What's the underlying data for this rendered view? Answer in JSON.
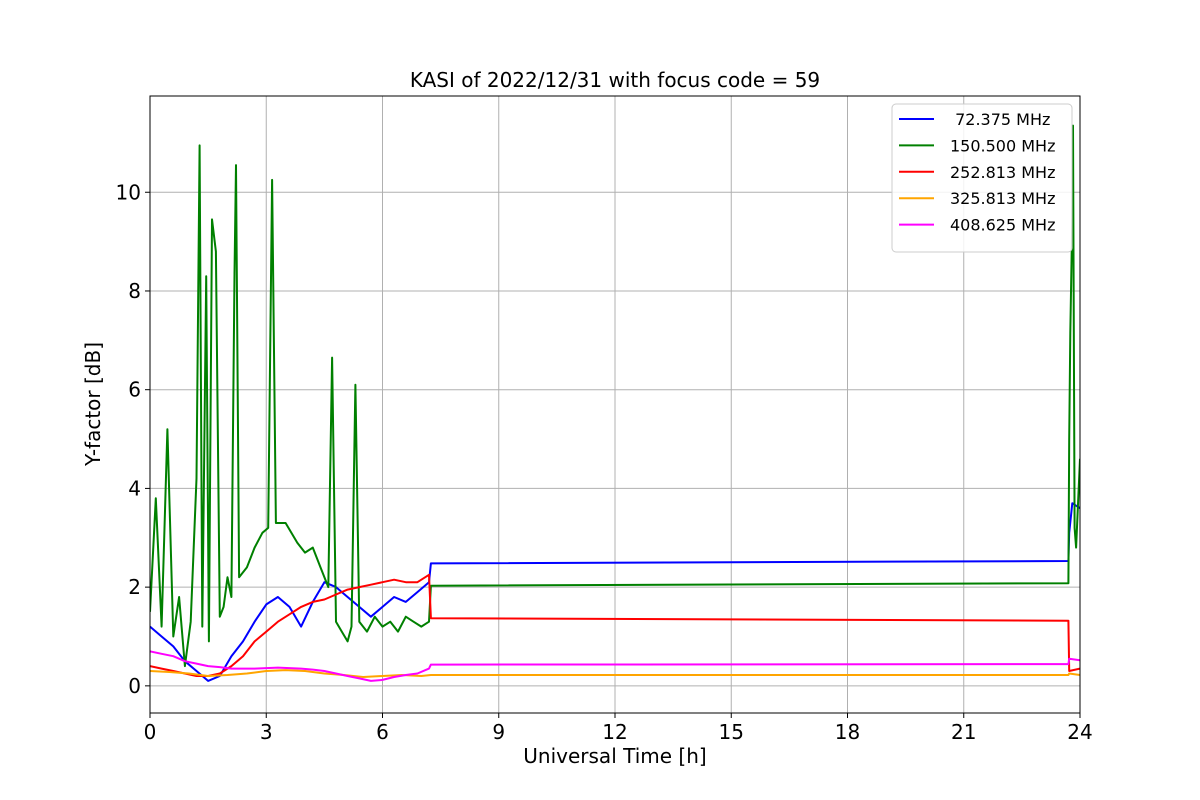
{
  "chart_data": {
    "type": "line",
    "title": "KASI of 2022/12/31 with focus code = 59",
    "xlabel": "Universal Time [h]",
    "ylabel": "Y-factor [dB]",
    "xlim": [
      0,
      24
    ],
    "ylim": [
      -0.55,
      11.95
    ],
    "xticks": [
      0,
      3,
      6,
      9,
      12,
      15,
      18,
      21,
      24
    ],
    "yticks": [
      0,
      2,
      4,
      6,
      8,
      10
    ],
    "grid": true,
    "legend_position": "top-right",
    "series": [
      {
        "name": " 72.375 MHz",
        "color": "#0000ff",
        "points": [
          [
            0,
            1.2
          ],
          [
            0.3,
            1.0
          ],
          [
            0.6,
            0.8
          ],
          [
            0.9,
            0.5
          ],
          [
            1.2,
            0.3
          ],
          [
            1.5,
            0.1
          ],
          [
            1.8,
            0.2
          ],
          [
            2.1,
            0.6
          ],
          [
            2.4,
            0.9
          ],
          [
            2.7,
            1.3
          ],
          [
            3.0,
            1.65
          ],
          [
            3.3,
            1.8
          ],
          [
            3.6,
            1.6
          ],
          [
            3.9,
            1.2
          ],
          [
            4.2,
            1.7
          ],
          [
            4.5,
            2.1
          ],
          [
            4.8,
            2.0
          ],
          [
            5.1,
            1.8
          ],
          [
            5.4,
            1.6
          ],
          [
            5.7,
            1.4
          ],
          [
            6.0,
            1.6
          ],
          [
            6.3,
            1.8
          ],
          [
            6.6,
            1.7
          ],
          [
            6.9,
            1.9
          ],
          [
            7.2,
            2.1
          ],
          [
            7.25,
            2.48
          ],
          [
            23.7,
            2.53
          ],
          [
            23.72,
            3.1
          ],
          [
            23.8,
            3.7
          ],
          [
            24,
            3.6
          ]
        ]
      },
      {
        "name": "150.500 MHz",
        "color": "#008000",
        "points": [
          [
            0,
            1.5
          ],
          [
            0.15,
            3.8
          ],
          [
            0.3,
            1.2
          ],
          [
            0.45,
            5.2
          ],
          [
            0.6,
            1.0
          ],
          [
            0.75,
            1.8
          ],
          [
            0.9,
            0.4
          ],
          [
            1.05,
            1.3
          ],
          [
            1.2,
            4.2
          ],
          [
            1.28,
            10.95
          ],
          [
            1.35,
            1.2
          ],
          [
            1.45,
            8.3
          ],
          [
            1.52,
            0.9
          ],
          [
            1.6,
            9.45
          ],
          [
            1.7,
            8.8
          ],
          [
            1.8,
            1.4
          ],
          [
            1.9,
            1.6
          ],
          [
            2.0,
            2.2
          ],
          [
            2.1,
            1.8
          ],
          [
            2.18,
            8.35
          ],
          [
            2.22,
            10.55
          ],
          [
            2.3,
            2.2
          ],
          [
            2.5,
            2.4
          ],
          [
            2.7,
            2.8
          ],
          [
            2.9,
            3.1
          ],
          [
            3.05,
            3.2
          ],
          [
            3.15,
            10.25
          ],
          [
            3.25,
            3.3
          ],
          [
            3.5,
            3.3
          ],
          [
            3.8,
            2.9
          ],
          [
            4.0,
            2.7
          ],
          [
            4.2,
            2.8
          ],
          [
            4.4,
            2.4
          ],
          [
            4.6,
            2.0
          ],
          [
            4.7,
            6.65
          ],
          [
            4.8,
            1.3
          ],
          [
            4.95,
            1.1
          ],
          [
            5.1,
            0.9
          ],
          [
            5.2,
            1.2
          ],
          [
            5.3,
            6.1
          ],
          [
            5.4,
            1.3
          ],
          [
            5.6,
            1.1
          ],
          [
            5.8,
            1.4
          ],
          [
            6.0,
            1.2
          ],
          [
            6.2,
            1.3
          ],
          [
            6.4,
            1.1
          ],
          [
            6.6,
            1.4
          ],
          [
            6.8,
            1.3
          ],
          [
            7.0,
            1.2
          ],
          [
            7.2,
            1.3
          ],
          [
            7.25,
            2.03
          ],
          [
            23.7,
            2.08
          ],
          [
            23.72,
            5.0
          ],
          [
            23.75,
            7.15
          ],
          [
            23.8,
            9.5
          ],
          [
            23.82,
            11.35
          ],
          [
            23.86,
            3.2
          ],
          [
            23.9,
            2.8
          ],
          [
            24,
            4.6
          ]
        ]
      },
      {
        "name": "252.813 MHz",
        "color": "#ff0000",
        "points": [
          [
            0,
            0.4
          ],
          [
            0.3,
            0.35
          ],
          [
            0.6,
            0.3
          ],
          [
            0.9,
            0.25
          ],
          [
            1.2,
            0.2
          ],
          [
            1.5,
            0.2
          ],
          [
            1.8,
            0.25
          ],
          [
            2.1,
            0.4
          ],
          [
            2.4,
            0.6
          ],
          [
            2.7,
            0.9
          ],
          [
            3.0,
            1.1
          ],
          [
            3.3,
            1.3
          ],
          [
            3.6,
            1.45
          ],
          [
            3.9,
            1.6
          ],
          [
            4.2,
            1.7
          ],
          [
            4.5,
            1.75
          ],
          [
            4.8,
            1.85
          ],
          [
            5.1,
            1.95
          ],
          [
            5.4,
            2.0
          ],
          [
            5.7,
            2.05
          ],
          [
            6.0,
            2.1
          ],
          [
            6.3,
            2.15
          ],
          [
            6.6,
            2.1
          ],
          [
            6.9,
            2.1
          ],
          [
            7.2,
            2.25
          ],
          [
            7.25,
            1.37
          ],
          [
            23.7,
            1.32
          ],
          [
            23.72,
            0.3
          ],
          [
            24,
            0.35
          ]
        ]
      },
      {
        "name": "325.813 MHz",
        "color": "#ffa500",
        "points": [
          [
            0,
            0.3
          ],
          [
            0.5,
            0.28
          ],
          [
            1.0,
            0.25
          ],
          [
            1.5,
            0.2
          ],
          [
            2.0,
            0.22
          ],
          [
            2.5,
            0.25
          ],
          [
            3.0,
            0.3
          ],
          [
            3.5,
            0.32
          ],
          [
            4.0,
            0.3
          ],
          [
            4.5,
            0.25
          ],
          [
            5.0,
            0.22
          ],
          [
            5.5,
            0.18
          ],
          [
            6.0,
            0.2
          ],
          [
            6.5,
            0.22
          ],
          [
            7.0,
            0.2
          ],
          [
            7.25,
            0.22
          ],
          [
            23.7,
            0.22
          ],
          [
            23.72,
            0.25
          ],
          [
            24,
            0.22
          ]
        ]
      },
      {
        "name": "408.625 MHz",
        "color": "#ff00ff",
        "points": [
          [
            0,
            0.7
          ],
          [
            0.3,
            0.65
          ],
          [
            0.6,
            0.6
          ],
          [
            0.9,
            0.5
          ],
          [
            1.2,
            0.45
          ],
          [
            1.5,
            0.4
          ],
          [
            1.8,
            0.38
          ],
          [
            2.1,
            0.35
          ],
          [
            2.4,
            0.35
          ],
          [
            2.7,
            0.35
          ],
          [
            3.0,
            0.36
          ],
          [
            3.3,
            0.37
          ],
          [
            3.6,
            0.36
          ],
          [
            3.9,
            0.35
          ],
          [
            4.2,
            0.33
          ],
          [
            4.5,
            0.3
          ],
          [
            4.8,
            0.25
          ],
          [
            5.1,
            0.2
          ],
          [
            5.4,
            0.15
          ],
          [
            5.7,
            0.1
          ],
          [
            6.0,
            0.12
          ],
          [
            6.3,
            0.18
          ],
          [
            6.6,
            0.22
          ],
          [
            6.9,
            0.25
          ],
          [
            7.2,
            0.35
          ],
          [
            7.25,
            0.43
          ],
          [
            23.7,
            0.44
          ],
          [
            23.72,
            0.55
          ],
          [
            24,
            0.52
          ]
        ]
      }
    ]
  }
}
